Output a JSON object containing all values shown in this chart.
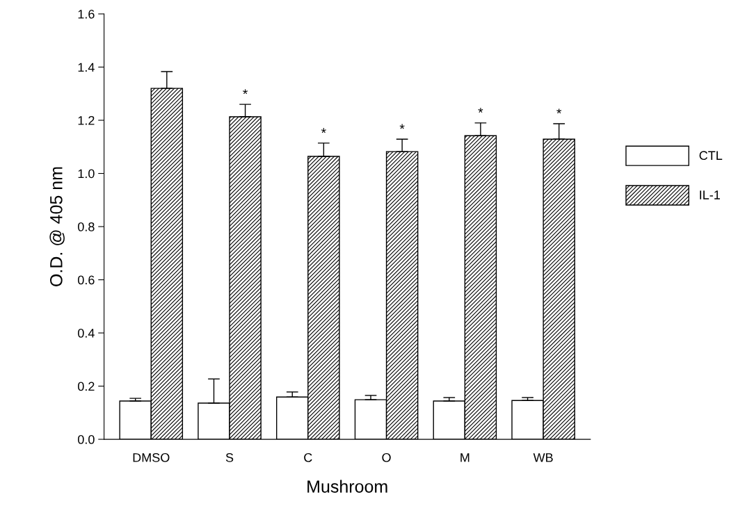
{
  "chart_data": {
    "type": "bar",
    "xlabel": "Mushroom",
    "ylabel": "O.D. @ 405 nm",
    "categories": [
      "DMSO",
      "S",
      "C",
      "O",
      "M",
      "WB"
    ],
    "series": [
      {
        "name": "CTL",
        "color": "#ffffff",
        "values": [
          0.144,
          0.136,
          0.159,
          0.149,
          0.144,
          0.146
        ],
        "errors": [
          [
            0.144,
            0.154
          ],
          [
            0.136,
            0.227
          ],
          [
            0.159,
            0.178
          ],
          [
            0.149,
            0.165
          ],
          [
            0.144,
            0.157
          ],
          [
            0.146,
            0.157
          ]
        ]
      },
      {
        "name": "IL-1",
        "color": "#000000",
        "values": [
          1.32,
          1.213,
          1.064,
          1.082,
          1.142,
          1.129
        ],
        "errors": [
          [
            1.32,
            1.383
          ],
          [
            1.213,
            1.26
          ],
          [
            1.064,
            1.114
          ],
          [
            1.082,
            1.129
          ],
          [
            1.142,
            1.19
          ],
          [
            1.129,
            1.187
          ]
        ]
      }
    ],
    "ylim": [
      0,
      1.6
    ],
    "yticks": [
      {
        "value": 0,
        "label": "0.0"
      },
      {
        "value": 0.2,
        "label": "0.2"
      },
      {
        "value": 0.4,
        "label": "0.4"
      },
      {
        "value": 0.6,
        "label": "0.6"
      },
      {
        "value": 0.8,
        "label": "0.8"
      },
      {
        "value": 1.0,
        "label": "1.0"
      },
      {
        "value": 1.2,
        "label": "1.2"
      },
      {
        "value": 1.4,
        "label": "1.4"
      },
      {
        "value": 1.6,
        "label": "1.6"
      }
    ],
    "annotations": [
      {
        "text": "*",
        "x": "S",
        "y": 1.213
      },
      {
        "text": "*",
        "x": "C",
        "y": 1.064
      },
      {
        "text": "*",
        "x": "O",
        "y": 1.082
      },
      {
        "text": "*",
        "x": "M",
        "y": 1.142
      },
      {
        "text": "*",
        "x": "WB",
        "y": 1.129
      }
    ],
    "grid": false,
    "legend": "right"
  }
}
